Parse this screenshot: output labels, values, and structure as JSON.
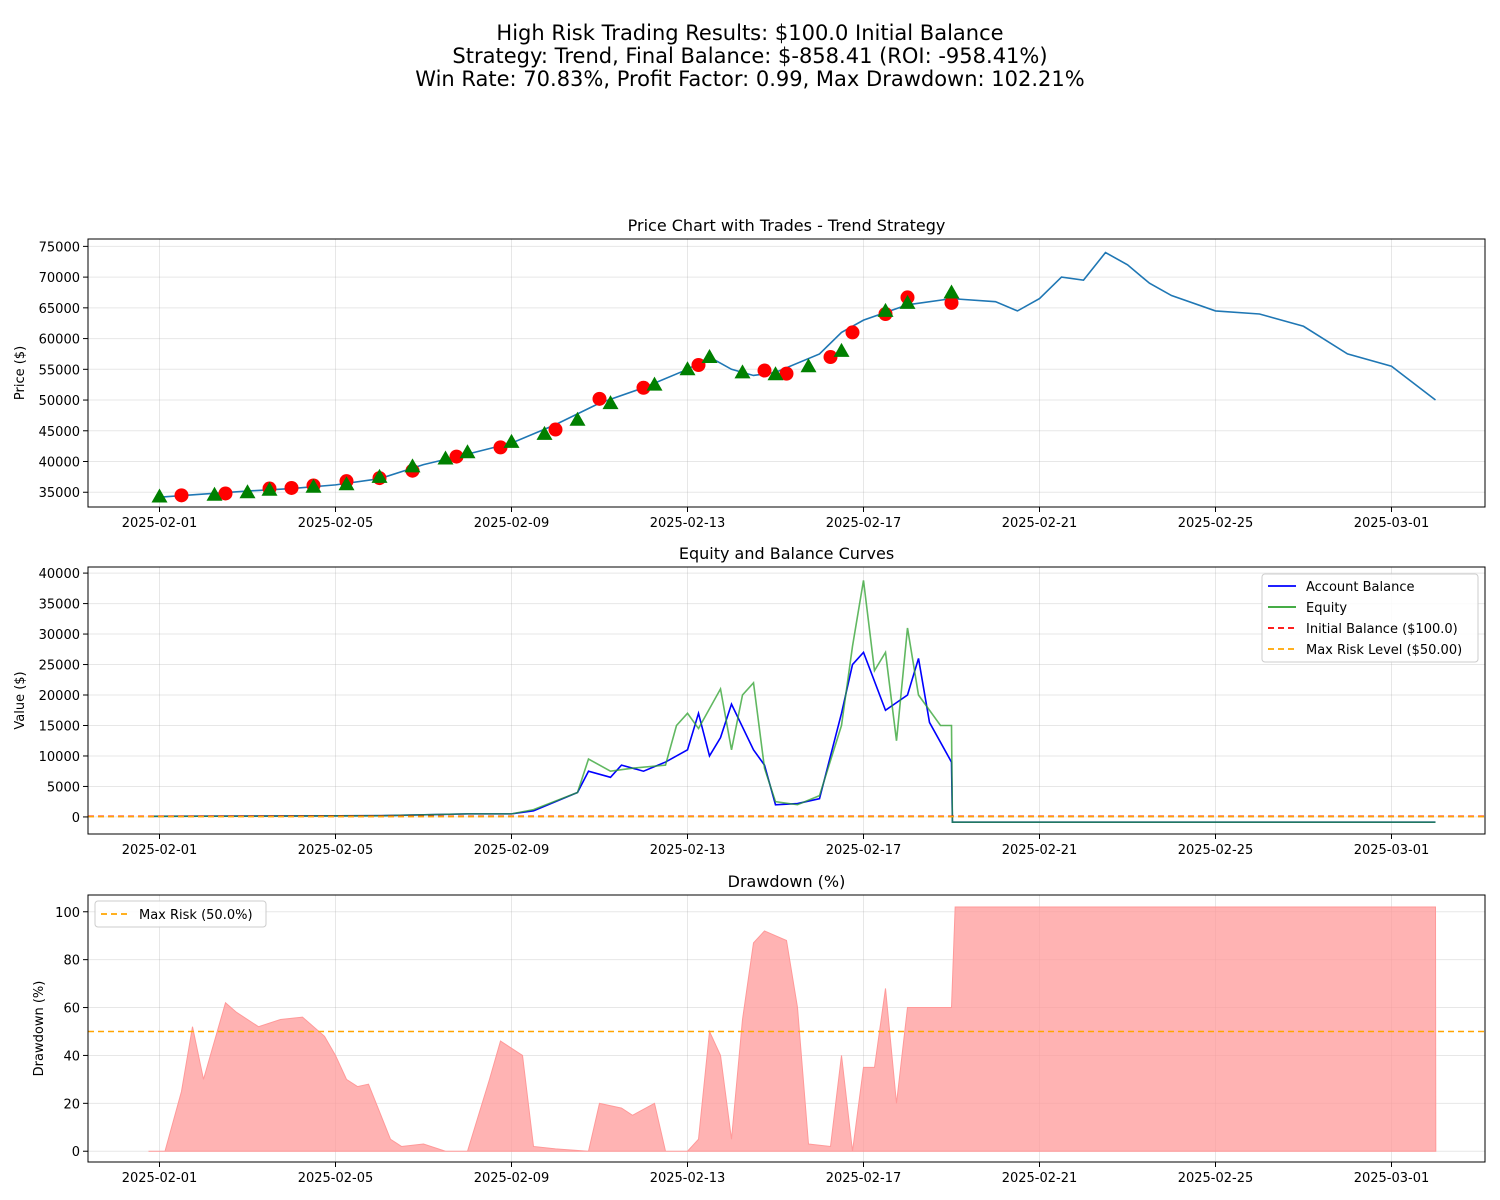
{
  "figure": {
    "suptitle_lines": [
      "High Risk Trading Results: $100.0 Initial Balance",
      "Strategy: Trend, Final Balance: $-858.41 (ROI: -958.41%)",
      "Win Rate: 70.83%, Profit Factor: 0.99, Max Drawdown: 102.21%"
    ],
    "colors": {
      "price": "#1f77b4",
      "balance": "#0000ff",
      "equity": "#2ca02c",
      "initial": "#ff0000",
      "maxrisk": "#ffa500",
      "drawdown": "#ff9999",
      "buy": "#008000",
      "sell": "#ff0000"
    }
  },
  "chart_data": [
    {
      "id": "price",
      "type": "line",
      "title": "Price Chart with Trades - Trend Strategy",
      "ylabel": "Price ($)",
      "xlabel": "",
      "x_ticks": [
        "2025-02-01",
        "2025-02-05",
        "2025-02-09",
        "2025-02-13",
        "2025-02-17",
        "2025-02-21",
        "2025-02-25",
        "2025-03-01"
      ],
      "y_ticks": [
        35000,
        40000,
        45000,
        50000,
        55000,
        60000,
        65000,
        70000,
        75000
      ],
      "xlim": [
        "2025-01-30T09:00",
        "2025-03-03T03:00"
      ],
      "ylim": [
        32600,
        76200
      ],
      "grid": true,
      "series": [
        {
          "x": [
            "2025-02-01T00:00",
            "2025-02-02T00:00",
            "2025-02-03T00:00",
            "2025-02-04T00:00",
            "2025-02-05T00:00",
            "2025-02-06T00:00",
            "2025-02-07T00:00",
            "2025-02-08T00:00",
            "2025-02-09T00:00",
            "2025-02-10T00:00",
            "2025-02-11T00:00",
            "2025-02-12T00:00",
            "2025-02-13T00:00",
            "2025-02-13T12:00",
            "2025-02-14T00:00",
            "2025-02-14T12:00",
            "2025-02-15T00:00",
            "2025-02-16T00:00",
            "2025-02-16T12:00",
            "2025-02-17T00:00",
            "2025-02-18T00:00",
            "2025-02-19T00:00",
            "2025-02-20T00:00",
            "2025-02-20T12:00",
            "2025-02-21T00:00",
            "2025-02-21T12:00",
            "2025-02-22T00:00",
            "2025-02-22T12:00",
            "2025-02-23T00:00",
            "2025-02-23T12:00",
            "2025-02-24T00:00",
            "2025-02-25T00:00",
            "2025-02-26T00:00",
            "2025-02-27T00:00",
            "2025-02-28T00:00",
            "2025-03-01T00:00",
            "2025-03-02T00:00"
          ],
          "y": [
            34200,
            34700,
            35200,
            35600,
            36200,
            37200,
            39500,
            41200,
            43000,
            46000,
            49500,
            52000,
            55000,
            57000,
            55000,
            54000,
            54500,
            57500,
            61000,
            63000,
            65500,
            66500,
            66000,
            64500,
            66500,
            70000,
            69500,
            74000,
            72000,
            69000,
            67000,
            64500,
            64000,
            62000,
            57500,
            55500,
            50000
          ]
        }
      ],
      "trades": {
        "buy": {
          "marker": "triangle",
          "x": [
            "2025-02-01T00:00",
            "2025-02-02T06:00",
            "2025-02-03T00:00",
            "2025-02-03T12:00",
            "2025-02-04T12:00",
            "2025-02-05T06:00",
            "2025-02-06T00:00",
            "2025-02-06T18:00",
            "2025-02-07T12:00",
            "2025-02-08T00:00",
            "2025-02-09T00:00",
            "2025-02-09T18:00",
            "2025-02-10T12:00",
            "2025-02-11T06:00",
            "2025-02-12T06:00",
            "2025-02-13T00:00",
            "2025-02-13T12:00",
            "2025-02-14T06:00",
            "2025-02-15T00:00",
            "2025-02-15T18:00",
            "2025-02-16T12:00",
            "2025-02-17T12:00",
            "2025-02-18T00:00",
            "2025-02-19T00:00"
          ],
          "y": [
            34300,
            34600,
            35000,
            35400,
            35900,
            36300,
            37500,
            39200,
            40500,
            41500,
            43200,
            44500,
            46800,
            49500,
            52500,
            55000,
            57000,
            54500,
            54200,
            55500,
            58000,
            64500,
            65800,
            67500
          ]
        },
        "sell": {
          "marker": "circle",
          "x": [
            "2025-02-01T12:00",
            "2025-02-02T12:00",
            "2025-02-03T12:00",
            "2025-02-04T00:00",
            "2025-02-04T12:00",
            "2025-02-05T06:00",
            "2025-02-06T00:00",
            "2025-02-06T18:00",
            "2025-02-07T18:00",
            "2025-02-08T18:00",
            "2025-02-10T00:00",
            "2025-02-11T00:00",
            "2025-02-12T00:00",
            "2025-02-13T06:00",
            "2025-02-14T18:00",
            "2025-02-15T06:00",
            "2025-02-16T06:00",
            "2025-02-16T18:00",
            "2025-02-17T12:00",
            "2025-02-18T00:00",
            "2025-02-19T00:00"
          ],
          "y": [
            34500,
            34800,
            35600,
            35700,
            36100,
            36800,
            37300,
            38500,
            40800,
            42300,
            45200,
            50200,
            52000,
            55700,
            54800,
            54300,
            57000,
            61000,
            64000,
            66700,
            65800
          ]
        }
      }
    },
    {
      "id": "equity",
      "type": "line",
      "title": "Equity and Balance Curves",
      "ylabel": "Value ($)",
      "xlabel": "",
      "x_ticks": [
        "2025-02-01",
        "2025-02-05",
        "2025-02-09",
        "2025-02-13",
        "2025-02-17",
        "2025-02-21",
        "2025-02-25",
        "2025-03-01"
      ],
      "y_ticks": [
        0,
        5000,
        10000,
        15000,
        20000,
        25000,
        30000,
        35000,
        40000
      ],
      "xlim": [
        "2025-01-30T09:00",
        "2025-03-03T03:00"
      ],
      "ylim": [
        -2800,
        41000
      ],
      "grid": true,
      "legend_position": "top-right",
      "series": [
        {
          "name": "Account Balance",
          "x": [
            "2025-01-31T18:00",
            "2025-02-06T00:00",
            "2025-02-08T00:00",
            "2025-02-09T00:00",
            "2025-02-09T12:00",
            "2025-02-10T12:00",
            "2025-02-10T18:00",
            "2025-02-11T06:00",
            "2025-02-11T12:00",
            "2025-02-12T00:00",
            "2025-02-12T12:00",
            "2025-02-13T00:00",
            "2025-02-13T06:00",
            "2025-02-13T12:00",
            "2025-02-13T18:00",
            "2025-02-14T00:00",
            "2025-02-14T12:00",
            "2025-02-14T18:00",
            "2025-02-15T00:00",
            "2025-02-15T12:00",
            "2025-02-16T00:00",
            "2025-02-16T12:00",
            "2025-02-16T18:00",
            "2025-02-17T00:00",
            "2025-02-17T12:00",
            "2025-02-18T00:00",
            "2025-02-18T06:00",
            "2025-02-18T12:00",
            "2025-02-19T00:00",
            "2025-02-19T00:30",
            "2025-03-02T00:00"
          ],
          "y": [
            100,
            200,
            500,
            500,
            1000,
            4000,
            7500,
            6500,
            8500,
            7500,
            9000,
            11000,
            17000,
            10000,
            13000,
            18500,
            11000,
            8500,
            2000,
            2200,
            3000,
            17000,
            25000,
            27000,
            17500,
            20000,
            26000,
            15500,
            9000,
            -858,
            -858
          ]
        },
        {
          "name": "Equity",
          "x": [
            "2025-01-31T18:00",
            "2025-02-06T00:00",
            "2025-02-08T00:00",
            "2025-02-09T00:00",
            "2025-02-09T12:00",
            "2025-02-10T12:00",
            "2025-02-10T18:00",
            "2025-02-11T06:00",
            "2025-02-11T18:00",
            "2025-02-12T12:00",
            "2025-02-12T18:00",
            "2025-02-13T00:00",
            "2025-02-13T06:00",
            "2025-02-13T18:00",
            "2025-02-14T00:00",
            "2025-02-14T06:00",
            "2025-02-14T12:00",
            "2025-02-14T18:00",
            "2025-02-15T00:00",
            "2025-02-15T12:00",
            "2025-02-16T00:00",
            "2025-02-16T12:00",
            "2025-02-16T18:00",
            "2025-02-17T00:00",
            "2025-02-17T06:00",
            "2025-02-17T12:00",
            "2025-02-17T18:00",
            "2025-02-18T00:00",
            "2025-02-18T06:00",
            "2025-02-18T18:00",
            "2025-02-19T00:00",
            "2025-02-19T00:30",
            "2025-03-02T00:00"
          ],
          "y": [
            100,
            200,
            500,
            500,
            1200,
            4000,
            9500,
            7500,
            8000,
            8500,
            15000,
            17000,
            14500,
            21000,
            11000,
            20000,
            22000,
            8000,
            2500,
            2000,
            3500,
            15000,
            28000,
            38800,
            24000,
            27000,
            12500,
            31000,
            20000,
            15000,
            15000,
            -858,
            -858
          ]
        }
      ],
      "reference_lines": [
        {
          "name": "Initial Balance ($100.0)",
          "y": 100,
          "color": "#ff0000",
          "style": "dashed"
        },
        {
          "name": "Max Risk Level ($50.00)",
          "y": 50,
          "color": "#ffa500",
          "style": "dashed"
        }
      ]
    },
    {
      "id": "drawdown",
      "type": "area",
      "title": "Drawdown (%)",
      "ylabel": "Drawdown (%)",
      "xlabel": "",
      "x_ticks": [
        "2025-02-01",
        "2025-02-05",
        "2025-02-09",
        "2025-02-13",
        "2025-02-17",
        "2025-02-21",
        "2025-02-25",
        "2025-03-01"
      ],
      "y_ticks": [
        0,
        20,
        40,
        60,
        80,
        100
      ],
      "xlim": [
        "2025-01-30T09:00",
        "2025-03-03T03:00"
      ],
      "ylim": [
        -4.5,
        107
      ],
      "grid": true,
      "legend_position": "top-left",
      "series": [
        {
          "name": "",
          "x": [
            "2025-01-31T18:00",
            "2025-02-01T03:00",
            "2025-02-01T12:00",
            "2025-02-01T18:00",
            "2025-02-02T00:00",
            "2025-02-02T12:00",
            "2025-02-02T18:00",
            "2025-02-03T06:00",
            "2025-02-03T18:00",
            "2025-02-04T06:00",
            "2025-02-04T18:00",
            "2025-02-05T00:00",
            "2025-02-05T06:00",
            "2025-02-05T12:00",
            "2025-02-05T18:00",
            "2025-02-06T06:00",
            "2025-02-06T12:00",
            "2025-02-07T00:00",
            "2025-02-07T12:00",
            "2025-02-08T00:00",
            "2025-02-08T12:00",
            "2025-02-08T18:00",
            "2025-02-09T06:00",
            "2025-02-09T12:00",
            "2025-02-10T00:00",
            "2025-02-10T18:00",
            "2025-02-11T00:00",
            "2025-02-11T12:00",
            "2025-02-11T18:00",
            "2025-02-12T06:00",
            "2025-02-12T12:00",
            "2025-02-13T00:00",
            "2025-02-13T06:00",
            "2025-02-13T12:00",
            "2025-02-13T18:00",
            "2025-02-14T00:00",
            "2025-02-14T06:00",
            "2025-02-14T12:00",
            "2025-02-14T18:00",
            "2025-02-15T06:00",
            "2025-02-15T12:00",
            "2025-02-15T18:00",
            "2025-02-16T06:00",
            "2025-02-16T12:00",
            "2025-02-16T18:00",
            "2025-02-17T00:00",
            "2025-02-17T06:00",
            "2025-02-17T12:00",
            "2025-02-17T18:00",
            "2025-02-18T00:00",
            "2025-02-18T06:00",
            "2025-02-18T12:00",
            "2025-02-19T00:00",
            "2025-02-19T02:00",
            "2025-03-02T00:00",
            "2025-03-02T00:10"
          ],
          "y": [
            0,
            0,
            25,
            52,
            30,
            62,
            58,
            52,
            55,
            56,
            48,
            40,
            30,
            27,
            28,
            5,
            2,
            3,
            0,
            0,
            30,
            46,
            40,
            2,
            1,
            0,
            20,
            18,
            15,
            20,
            0,
            0,
            5,
            50,
            40,
            5,
            55,
            87,
            92,
            88,
            60,
            3,
            2,
            40,
            0,
            35,
            35,
            68,
            20,
            60,
            60,
            60,
            60,
            102,
            102,
            0
          ]
        }
      ],
      "reference_lines": [
        {
          "name": "Max Risk (50.0%)",
          "y": 50,
          "color": "#ffa500",
          "style": "dashed"
        }
      ]
    }
  ]
}
